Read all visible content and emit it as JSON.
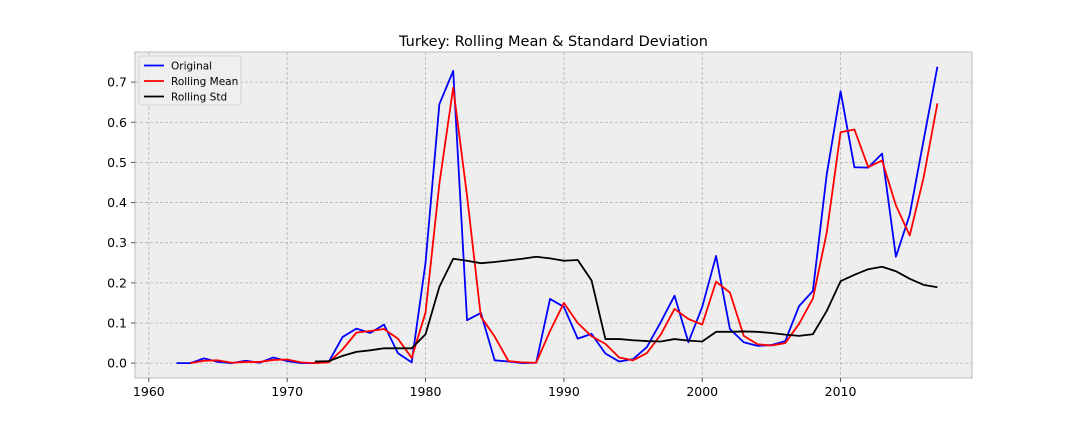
{
  "chart_data": {
    "type": "line",
    "title": "Turkey: Rolling Mean & Standard Deviation",
    "xlabel": "",
    "ylabel": "",
    "xlim": [
      1959,
      2019.5
    ],
    "ylim": [
      -0.037,
      0.775
    ],
    "xticks": [
      1960,
      1970,
      1980,
      1990,
      2000,
      2010
    ],
    "yticks": [
      0.0,
      0.1,
      0.2,
      0.3,
      0.4,
      0.5,
      0.6,
      0.7
    ],
    "ytick_labels": [
      "0.0",
      "0.1",
      "0.2",
      "0.3",
      "0.4",
      "0.5",
      "0.6",
      "0.7"
    ],
    "grid": true,
    "legend_position": "top-left",
    "series": [
      {
        "name": "Original",
        "color": "#0000ff",
        "x": [
          1962,
          1963,
          1964,
          1965,
          1966,
          1967,
          1968,
          1969,
          1970,
          1971,
          1972,
          1973,
          1974,
          1975,
          1976,
          1977,
          1978,
          1979,
          1980,
          1981,
          1982,
          1983,
          1984,
          1985,
          1986,
          1987,
          1988,
          1989,
          1990,
          1991,
          1992,
          1993,
          1994,
          1995,
          1996,
          1997,
          1998,
          1999,
          2000,
          2001,
          2002,
          2003,
          2004,
          2005,
          2006,
          2007,
          2008,
          2009,
          2010,
          2011,
          2012,
          2013,
          2014,
          2015,
          2016,
          2017
        ],
        "y": [
          0.0,
          0.0,
          0.012,
          0.003,
          0.0,
          0.006,
          0.001,
          0.014,
          0.005,
          0.0,
          0.0,
          0.003,
          0.065,
          0.086,
          0.075,
          0.096,
          0.025,
          0.002,
          0.25,
          0.645,
          0.728,
          0.107,
          0.125,
          0.007,
          0.004,
          0.0,
          0.001,
          0.16,
          0.14,
          0.061,
          0.073,
          0.024,
          0.004,
          0.01,
          0.04,
          0.102,
          0.168,
          0.052,
          0.14,
          0.267,
          0.085,
          0.052,
          0.043,
          0.045,
          0.055,
          0.142,
          0.18,
          0.47,
          0.677,
          0.488,
          0.487,
          0.522,
          0.265,
          0.37,
          0.555,
          0.738
        ]
      },
      {
        "name": "Rolling Mean",
        "color": "#ff0000",
        "x": [
          1963,
          1964,
          1965,
          1966,
          1967,
          1968,
          1969,
          1970,
          1971,
          1972,
          1973,
          1974,
          1975,
          1976,
          1977,
          1978,
          1979,
          1980,
          1981,
          1982,
          1983,
          1984,
          1985,
          1986,
          1987,
          1988,
          1989,
          1990,
          1991,
          1992,
          1993,
          1994,
          1995,
          1996,
          1997,
          1998,
          1999,
          2000,
          2001,
          2002,
          2003,
          2004,
          2005,
          2006,
          2007,
          2008,
          2009,
          2010,
          2011,
          2012,
          2013,
          2014,
          2015,
          2016,
          2017
        ],
        "y": [
          0.0,
          0.006,
          0.007,
          0.001,
          0.003,
          0.003,
          0.008,
          0.009,
          0.002,
          0.0,
          0.002,
          0.034,
          0.076,
          0.08,
          0.085,
          0.061,
          0.013,
          0.126,
          0.447,
          0.686,
          0.417,
          0.116,
          0.066,
          0.005,
          0.002,
          0.001,
          0.08,
          0.15,
          0.1,
          0.067,
          0.048,
          0.014,
          0.007,
          0.025,
          0.071,
          0.135,
          0.11,
          0.096,
          0.203,
          0.176,
          0.068,
          0.047,
          0.044,
          0.05,
          0.098,
          0.161,
          0.325,
          0.575,
          0.582,
          0.488,
          0.505,
          0.393,
          0.318,
          0.462,
          0.647
        ]
      },
      {
        "name": "Rolling Std",
        "color": "#000000",
        "x": [
          1972,
          1973,
          1974,
          1975,
          1976,
          1977,
          1978,
          1979,
          1980,
          1981,
          1982,
          1983,
          1984,
          1985,
          1986,
          1987,
          1988,
          1989,
          1990,
          1991,
          1992,
          1993,
          1994,
          1995,
          1996,
          1997,
          1998,
          1999,
          2000,
          2001,
          2002,
          2003,
          2004,
          2005,
          2006,
          2007,
          2008,
          2009,
          2010,
          2011,
          2012,
          2013,
          2014,
          2015,
          2016,
          2017
        ],
        "y": [
          0.004,
          0.005,
          0.018,
          0.028,
          0.032,
          0.037,
          0.037,
          0.037,
          0.072,
          0.19,
          0.26,
          0.255,
          0.249,
          0.252,
          0.256,
          0.26,
          0.265,
          0.261,
          0.255,
          0.257,
          0.206,
          0.06,
          0.06,
          0.057,
          0.055,
          0.054,
          0.06,
          0.056,
          0.054,
          0.078,
          0.078,
          0.079,
          0.078,
          0.075,
          0.071,
          0.068,
          0.072,
          0.13,
          0.204,
          0.22,
          0.234,
          0.24,
          0.229,
          0.21,
          0.195,
          0.189
        ]
      }
    ]
  }
}
